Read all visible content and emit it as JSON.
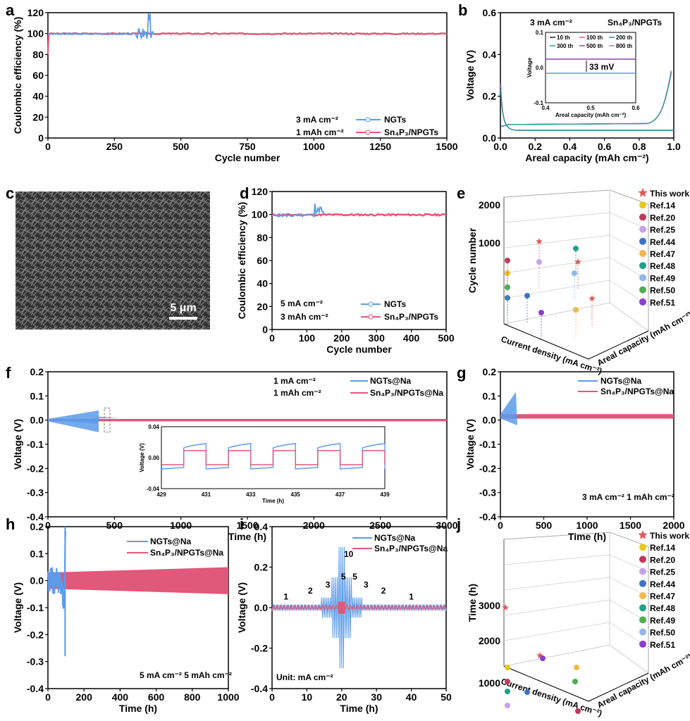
{
  "colors": {
    "ngts": "#5b9bea",
    "sn4p3": "#e0587a",
    "star": "#e15a5a",
    "grid": "#cccccc"
  },
  "panels": {
    "a": "a",
    "b": "b",
    "c": "c",
    "d": "d",
    "e": "e",
    "f": "f",
    "g": "g",
    "h": "h",
    "i": "i",
    "j": "j"
  },
  "chart_data": [
    {
      "id": "a",
      "type": "line",
      "ylabel": "Coulombic efficiency (%)",
      "xlabel": "Cycle number",
      "xlim": [
        0,
        1500
      ],
      "ylim": [
        0,
        120
      ],
      "xticks": [
        "0",
        "250",
        "500",
        "750",
        "1000",
        "1250",
        "1500"
      ],
      "yticks": [
        "0",
        "20",
        "40",
        "60",
        "80",
        "100",
        "120"
      ],
      "conditions": [
        "3 mA cm⁻²",
        "1 mAh cm⁻²"
      ],
      "series": [
        {
          "name": "NGTs",
          "cycles_end": 400,
          "mean": 99
        },
        {
          "name": "Sn₄P₃/NPGTs",
          "cycles_end": 1500,
          "mean": 99.5
        }
      ]
    },
    {
      "id": "b",
      "type": "line",
      "ylabel": "Voltage (V)",
      "xlabel": "Areal capacity (mAh cm⁻²)",
      "xlim": [
        0,
        1
      ],
      "ylim": [
        -0.05,
        0.6
      ],
      "xticks": [
        "0.0",
        "0.2",
        "0.4",
        "0.6",
        "0.8",
        "1.0"
      ],
      "yticks": [
        "0.0",
        "0.2",
        "0.4",
        "0.6"
      ],
      "header": "3 mA cm⁻²",
      "sample": "Sn₄P₃/NPGTs",
      "inset": {
        "xlabel": "Areal capacity (mAh cm⁻²)",
        "ylabel": "Voltage",
        "xticks": [
          "0.4",
          "0.5",
          "0.6"
        ],
        "yticks": [
          "0.1",
          "0.0",
          "-0.1"
        ],
        "legend": [
          "10 th",
          "100 th",
          "200 th",
          "300 th",
          "500 th",
          "800 th"
        ],
        "legend_colors": [
          "#222222",
          "#e0587a",
          "#4477cc",
          "#2aa198",
          "#8e44ad",
          "#999999"
        ],
        "annotation": "33 mV"
      }
    },
    {
      "id": "c",
      "type": "image",
      "scale_bar": "5 μm"
    },
    {
      "id": "d",
      "type": "line",
      "ylabel": "Coulombic efficiency (%)",
      "xlabel": "Cycle number",
      "xlim": [
        0,
        500
      ],
      "ylim": [
        0,
        120
      ],
      "xticks": [
        "0",
        "100",
        "200",
        "300",
        "400",
        "500"
      ],
      "yticks": [
        "0",
        "20",
        "40",
        "60",
        "80",
        "100",
        "120"
      ],
      "conditions": [
        "5 mA cm⁻²",
        "3 mAh cm⁻²"
      ],
      "series": [
        {
          "name": "NGTs"
        },
        {
          "name": "Sn₄P₃/NPGTs"
        }
      ]
    },
    {
      "id": "e",
      "type": "scatter3d",
      "zlabel": "Cycle number",
      "xlabel": "Current density (mA cm⁻²)",
      "ylabel": "Areal capacity (mAh cm⁻²)",
      "zticks": [
        "1000",
        "2000"
      ],
      "legend": [
        "This work",
        "Ref.14",
        "Ref.20",
        "Ref.25",
        "Ref.44",
        "Ref.47",
        "Ref.48",
        "Ref.49",
        "Ref.50",
        "Ref.51"
      ],
      "legend_colors": [
        "#e15a5a",
        "#e8c61c",
        "#c0395a",
        "#c9a0e8",
        "#3e74c8",
        "#f2b84b",
        "#1fa08a",
        "#8fb8e8",
        "#4cae4f",
        "#8a3fd0"
      ]
    },
    {
      "id": "f",
      "type": "line",
      "ylabel": "Voltage (V)",
      "xlabel": "Time (h)",
      "xlim": [
        0,
        3000
      ],
      "ylim": [
        -0.4,
        0.2
      ],
      "xticks": [
        "0",
        "500",
        "1000",
        "1500",
        "2000",
        "2500",
        "3000"
      ],
      "yticks": [
        "0.2",
        "0.1",
        "0.0",
        "-0.1",
        "-0.2",
        "-0.3",
        "-0.4"
      ],
      "conditions": [
        "1 mA cm⁻²",
        "1 mAh cm⁻²"
      ],
      "series": [
        {
          "name": "NGTs@Na"
        },
        {
          "name": "Sn₄P₃/NPGTs@Na"
        }
      ],
      "inset": {
        "xlabel": "Time (h)",
        "ylabel": "Voltage (V)",
        "xticks": [
          "429",
          "431",
          "433",
          "435",
          "437",
          "439"
        ],
        "yticks": [
          "0.04",
          "0.00",
          "-0.04"
        ]
      }
    },
    {
      "id": "g",
      "type": "line",
      "ylabel": "Voltage (V)",
      "xlabel": "Time (h)",
      "xlim": [
        0,
        2000
      ],
      "ylim": [
        -0.45,
        0.2
      ],
      "xticks": [
        "0",
        "500",
        "1000",
        "1500",
        "2000"
      ],
      "yticks": [
        "0.2",
        "0.1",
        "0.0",
        "-0.1",
        "-0.2",
        "-0.3",
        "-0.4"
      ],
      "conditions": [
        "3 mA cm⁻² 1 mAh cm⁻²"
      ],
      "series": [
        {
          "name": "NGTs@Na"
        },
        {
          "name": "Sn₄P₃/NPGTs@Na"
        }
      ]
    },
    {
      "id": "h",
      "type": "line",
      "ylabel": "Voltage (V)",
      "xlabel": "Time (h)",
      "xlim": [
        0,
        1000
      ],
      "ylim": [
        -0.4,
        0.2
      ],
      "xticks": [
        "0",
        "200",
        "400",
        "600",
        "800",
        "1000"
      ],
      "yticks": [
        "0.2",
        "0.1",
        "0.0",
        "-0.1",
        "-0.2",
        "-0.3",
        "-0.4"
      ],
      "conditions": [
        "5 mA cm⁻² 5 mAh cm⁻²"
      ],
      "series": [
        {
          "name": "NGTs@Na"
        },
        {
          "name": "Sn₄P₃/NPGTs@Na"
        }
      ]
    },
    {
      "id": "i",
      "type": "line",
      "ylabel": "Voltage (V)",
      "xlabel": "Time (h)",
      "xlim": [
        0,
        50
      ],
      "ylim": [
        -0.4,
        0.4
      ],
      "xticks": [
        "0",
        "10",
        "20",
        "30",
        "40",
        "50"
      ],
      "yticks": [
        "0.4",
        "0.2",
        "0.0",
        "-0.2",
        "-0.4"
      ],
      "unit": "Unit: mA cm⁻²",
      "rate_labels": [
        "1",
        "2",
        "3",
        "5",
        "10",
        "5",
        "3",
        "2",
        "1"
      ],
      "series": [
        {
          "name": "NGTs@Na"
        },
        {
          "name": "Sn₄P₃/NPGTs@Na"
        }
      ]
    },
    {
      "id": "j",
      "type": "scatter3d",
      "zlabel": "Time (h)",
      "xlabel": "Current density (mA cm⁻²)",
      "ylabel": "Areal capacity (mAh cm⁻²)",
      "zticks": [
        "1000",
        "2000",
        "3000"
      ],
      "legend": [
        "This work",
        "Ref.14",
        "Ref.20",
        "Ref.25",
        "Ref.44",
        "Ref.47",
        "Ref.48",
        "Ref.49",
        "Ref.50",
        "Ref.51"
      ],
      "legend_colors": [
        "#e15a5a",
        "#e8c61c",
        "#c0395a",
        "#c9a0e8",
        "#3e74c8",
        "#f2b84b",
        "#1fa08a",
        "#4cae4f",
        "#8fb8e8",
        "#8a3fd0"
      ]
    }
  ]
}
